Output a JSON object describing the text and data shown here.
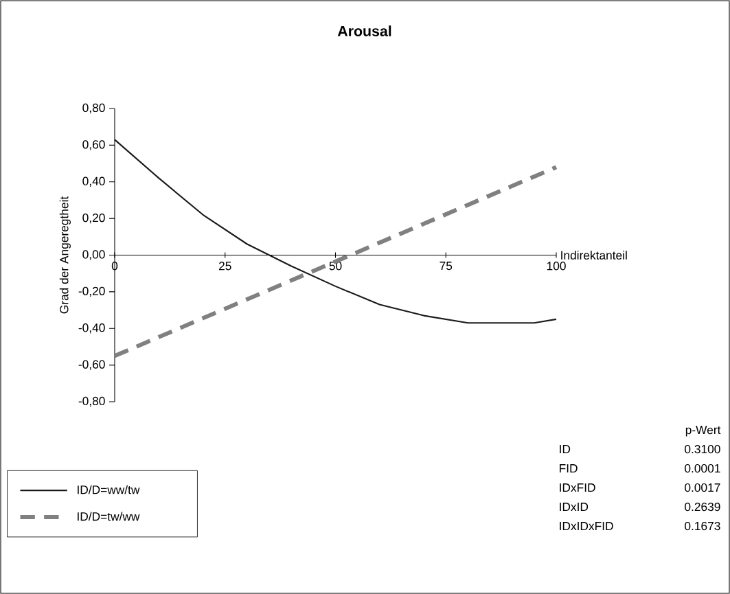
{
  "chart_data": {
    "type": "line",
    "title": "Arousal",
    "xlabel": "Indirektanteil",
    "ylabel": "Grad der Angeregtheit",
    "xlim": [
      0,
      100
    ],
    "ylim": [
      -0.8,
      0.8
    ],
    "xticks": [
      0,
      25,
      50,
      75,
      100
    ],
    "yticks": [
      {
        "value": 0.8,
        "label": "0,80"
      },
      {
        "value": 0.6,
        "label": "0,60"
      },
      {
        "value": 0.4,
        "label": "0,40"
      },
      {
        "value": 0.2,
        "label": "0,20"
      },
      {
        "value": 0,
        "label": "0,00"
      },
      {
        "value": -0.2,
        "label": "-0,20"
      },
      {
        "value": -0.4,
        "label": "-0,40"
      },
      {
        "value": -0.6,
        "label": "-0,60"
      },
      {
        "value": -0.8,
        "label": "-0,80"
      }
    ],
    "x": [
      0,
      10,
      20,
      30,
      40,
      50,
      60,
      70,
      80,
      90,
      95,
      100
    ],
    "series": [
      {
        "name": "ID/D=ww/tw",
        "color": "#1a1a1a",
        "line_style": "solid",
        "values": [
          0.63,
          0.42,
          0.22,
          0.06,
          -0.06,
          -0.17,
          -0.27,
          -0.33,
          -0.37,
          -0.37,
          -0.37,
          -0.35
        ]
      },
      {
        "name": "ID/D=tw/ww",
        "color": "#808080",
        "line_style": "dashed",
        "x": [
          0,
          100
        ],
        "values": [
          -0.55,
          0.48
        ]
      }
    ],
    "legend": "bottom left",
    "grid": false,
    "marker": "none",
    "annotations": [
      "p-Wert",
      "ID",
      "0.3100",
      "FID",
      "0.0001",
      "IDxFID",
      "0.0017",
      "IDxID",
      "0.2639",
      "IDxIDxFID",
      "0.1673"
    ]
  }
}
